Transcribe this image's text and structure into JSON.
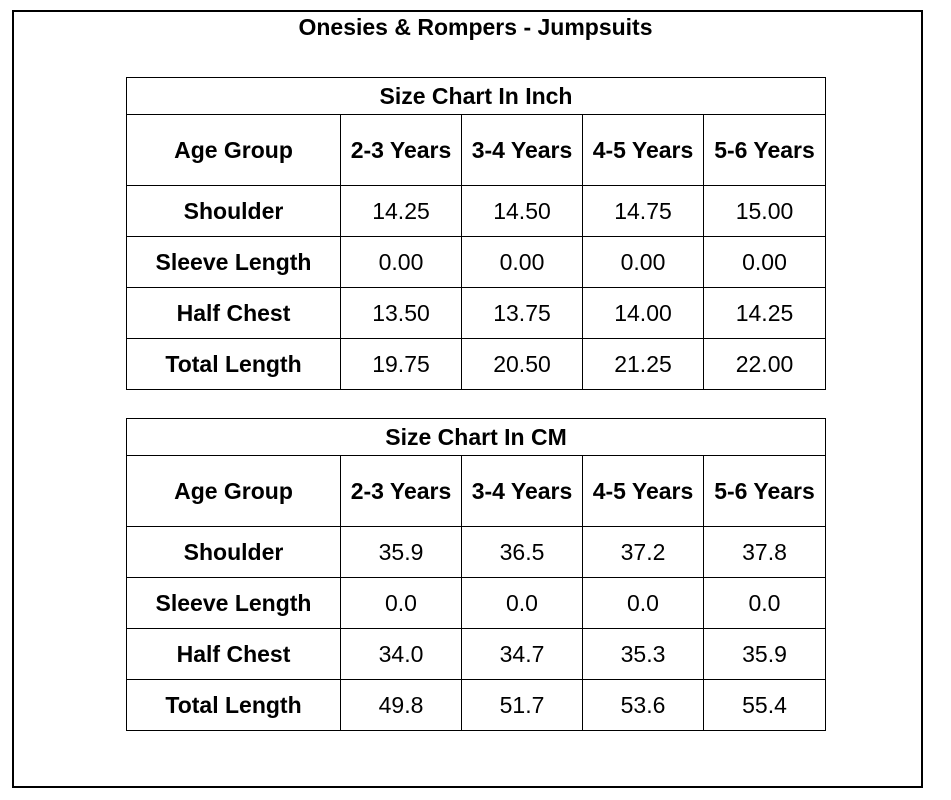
{
  "document": {
    "title": "Onesies & Rompers - Jumpsuits"
  },
  "tables": [
    {
      "caption": "Size Chart In Inch",
      "header": [
        "Age Group",
        "2-3 Years",
        "3-4 Years",
        "4-5 Years",
        "5-6 Years"
      ],
      "rows": [
        {
          "label": "Shoulder",
          "values": [
            "14.25",
            "14.50",
            "14.75",
            "15.00"
          ]
        },
        {
          "label": "Sleeve Length",
          "values": [
            "0.00",
            "0.00",
            "0.00",
            "0.00"
          ]
        },
        {
          "label": "Half Chest",
          "values": [
            "13.50",
            "13.75",
            "14.00",
            "14.25"
          ]
        },
        {
          "label": "Total Length",
          "values": [
            "19.75",
            "20.50",
            "21.25",
            "22.00"
          ]
        }
      ]
    },
    {
      "caption": "Size Chart In CM",
      "header": [
        "Age Group",
        "2-3 Years",
        "3-4 Years",
        "4-5 Years",
        "5-6 Years"
      ],
      "rows": [
        {
          "label": "Shoulder",
          "values": [
            "35.9",
            "36.5",
            "37.2",
            "37.8"
          ]
        },
        {
          "label": "Sleeve Length",
          "values": [
            "0.0",
            "0.0",
            "0.0",
            "0.0"
          ]
        },
        {
          "label": "Half Chest",
          "values": [
            "34.0",
            "34.7",
            "35.3",
            "35.9"
          ]
        },
        {
          "label": "Total Length",
          "values": [
            "49.8",
            "51.7",
            "53.6",
            "55.4"
          ]
        }
      ]
    }
  ]
}
